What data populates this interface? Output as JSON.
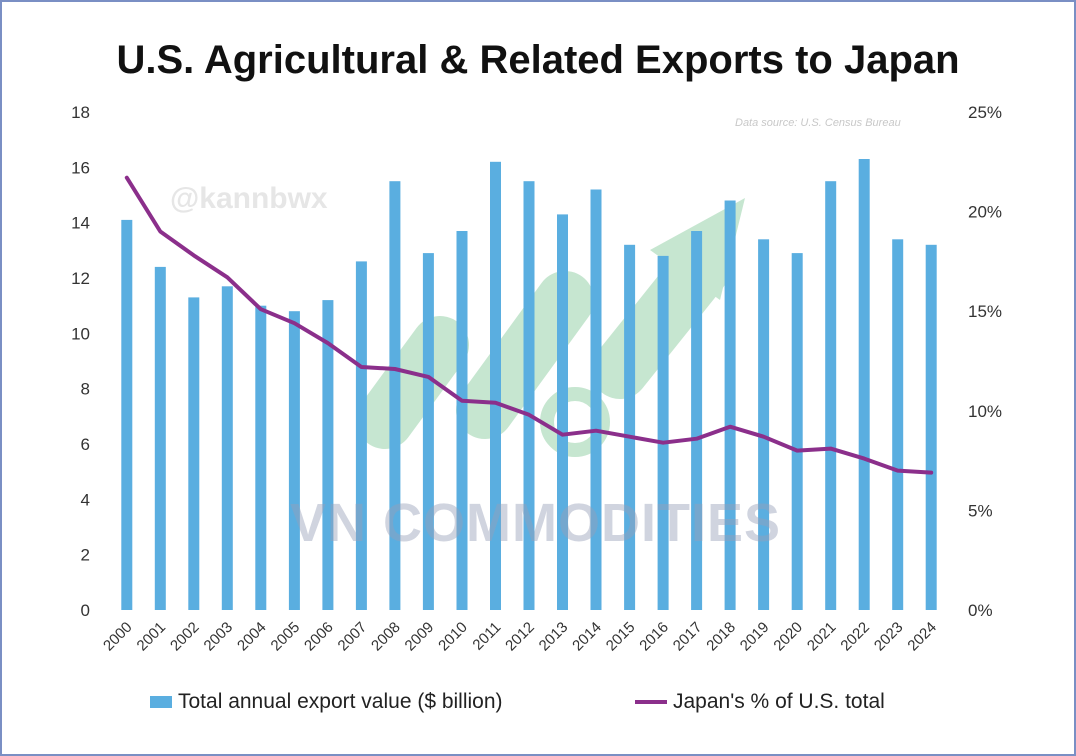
{
  "chart_data": {
    "type": "bar+line",
    "title": "U.S. Agricultural & Related Exports to Japan",
    "source_note": "Data source: U.S. Census Bureau",
    "watermarks": [
      "@kannbwx",
      "VN COMMODITIES"
    ],
    "categories": [
      "2000",
      "2001",
      "2002",
      "2003",
      "2004",
      "2005",
      "2006",
      "2007",
      "2008",
      "2009",
      "2010",
      "2011",
      "2012",
      "2013",
      "2014",
      "2015",
      "2016",
      "2017",
      "2018",
      "2019",
      "2020",
      "2021",
      "2022",
      "2023",
      "2024"
    ],
    "series": [
      {
        "name": "Total annual export value ($ billion)",
        "type": "bar",
        "axis": "left",
        "color": "#5aaee0",
        "values": [
          14.1,
          12.4,
          11.3,
          11.7,
          11.0,
          10.8,
          11.2,
          12.6,
          15.5,
          12.9,
          13.7,
          16.2,
          15.5,
          14.3,
          15.2,
          13.2,
          12.8,
          13.7,
          14.8,
          13.4,
          12.9,
          15.5,
          16.3,
          13.4,
          13.2
        ]
      },
      {
        "name": "Japan's % of U.S. total",
        "type": "line",
        "axis": "right",
        "color": "#8b2f8b",
        "values": [
          21.7,
          19.0,
          17.8,
          16.7,
          15.1,
          14.4,
          13.4,
          12.2,
          12.1,
          11.7,
          10.5,
          10.4,
          9.8,
          8.8,
          9.0,
          8.7,
          8.4,
          8.6,
          9.2,
          8.7,
          8.0,
          8.1,
          7.6,
          7.0,
          6.9
        ]
      }
    ],
    "left_axis": {
      "ylim": [
        0,
        18
      ],
      "ticks": [
        "0",
        "2",
        "4",
        "6",
        "8",
        "10",
        "12",
        "14",
        "16",
        "18"
      ]
    },
    "right_axis": {
      "ylim": [
        0,
        25
      ],
      "ticks": [
        "0%",
        "5%",
        "10%",
        "15%",
        "20%",
        "25%"
      ]
    },
    "legend": {
      "position": "bottom",
      "items": [
        "Total annual export value ($ billion)",
        "Japan's % of U.S. total"
      ]
    }
  }
}
